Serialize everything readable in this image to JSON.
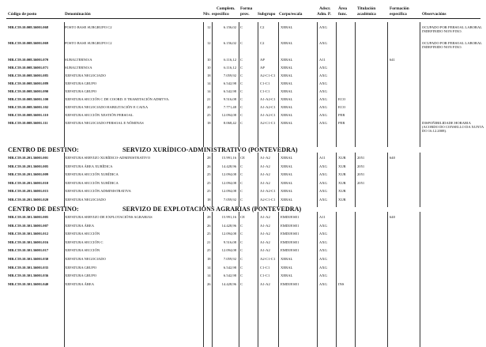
{
  "headers": {
    "codigo": "Código de posto",
    "denominacion": "Denominación",
    "nivel": "Niv.",
    "complemento_1": "Complem.",
    "complemento_2": "específico",
    "forma_1": "Forma",
    "forma_2": "prov.",
    "subgrupo": "Subgrupo",
    "corpo": "Corpo/escala",
    "adscr_1": "Adscr.",
    "adscr_2": "Adm. P.",
    "area_1": "Área",
    "area_2": "func.",
    "titulacion_1": "Titulación",
    "titulacion_2": "académica",
    "formacion_1": "Formación",
    "formacion_2": "específica",
    "observacions": "Observacións"
  },
  "sections": [
    {
      "label": "",
      "title": "",
      "rows": [
        {
          "code": "MR.C59.10.008.36001.068",
          "denom": "POSTO BASE SUBGRUPO C2",
          "niv": "12",
          "comp": "6.156,02",
          "forma": "C",
          "sub": "C2",
          "corpo": "XERAL",
          "adscr": "AXG",
          "area": "",
          "tit": "",
          "form": "",
          "obs": "OCUPADO POR PERSOAL LABORAL INDEFINIDO NON FIXO."
        },
        {
          "code": "MR.C59.10.008.36001.069",
          "denom": "POSTO BASE SUBGRUPO C2",
          "niv": "12",
          "comp": "6.156,02",
          "forma": "C",
          "sub": "C2",
          "corpo": "XERAL",
          "adscr": "AXG",
          "area": "",
          "tit": "",
          "form": "",
          "obs": "OCUPADO POR PERSOAL LABORAL INDEFINIDO NON FIXO."
        },
        {
          "code": "MR.C59.10.008.36001.070",
          "denom": "SUBALTERNO/A",
          "niv": "10",
          "comp": "6.116,12",
          "forma": "C",
          "sub": "AP",
          "corpo": "XERAL",
          "adscr": "A11",
          "area": "",
          "tit": "",
          "form": "641",
          "obs": ""
        },
        {
          "code": "MR.C59.10.008.36001.071",
          "denom": "SUBALTERNO/A",
          "niv": "10",
          "comp": "6.116,12",
          "forma": "C",
          "sub": "AP",
          "corpo": "XERAL",
          "adscr": "AXG",
          "area": "",
          "tit": "",
          "form": "",
          "obs": ""
        },
        {
          "code": "MR.C59.10.008.36001.085",
          "denom": "XEFATURA NEGOCIADO",
          "niv": "18",
          "comp": "7.059,92",
          "forma": "C",
          "sub": "A2-C1-C1",
          "corpo": "XERAL",
          "adscr": "AXG",
          "area": "",
          "tit": "",
          "form": "",
          "obs": ""
        },
        {
          "code": "MR.C59.10.008.36001.089",
          "denom": "XEFATURA GRUPO",
          "niv": "14",
          "comp": "6.542,98",
          "forma": "C",
          "sub": "C1-C1",
          "corpo": "XERAL",
          "adscr": "AXG",
          "area": "",
          "tit": "",
          "form": "",
          "obs": ""
        },
        {
          "code": "MR.C59.10.008.36001.090",
          "denom": "XEFATURA GRUPO",
          "niv": "14",
          "comp": "6.542,98",
          "forma": "C",
          "sub": "C1-C1",
          "corpo": "XERAL",
          "adscr": "AXG",
          "area": "",
          "tit": "",
          "form": "",
          "obs": ""
        },
        {
          "code": "MR.C59.10.008.36001.100",
          "denom": "XEFATURA SECCIÓN C DE COORD. E TRAMITACIÓN ADMTVA.",
          "niv": "21",
          "comp": "9.516,08",
          "forma": "C",
          "sub": "A1-A2-C1",
          "corpo": "XERAL",
          "adscr": "AXG",
          "area": "ECO",
          "tit": "",
          "form": "",
          "obs": ""
        },
        {
          "code": "MR.C59.10.008.36001.102",
          "denom": "XEFATURA NEGOCIADO HABILITACIÓN E CAIXA",
          "niv": "20",
          "comp": "7.771,48",
          "forma": "C",
          "sub": "A1-A2-C1",
          "corpo": "XERAL",
          "adscr": "AXG",
          "area": "ECO",
          "tit": "",
          "form": "",
          "obs": ""
        },
        {
          "code": "MR.C59.10.008.36001.110",
          "denom": "XEFATURA SECCIÓN XESTIÓN PERSOAL",
          "niv": "25",
          "comp": "12.094,08",
          "forma": "C",
          "sub": "A1-A2-C1",
          "corpo": "XERAL",
          "adscr": "AXG",
          "area": "PER",
          "tit": "",
          "form": "",
          "obs": ""
        },
        {
          "code": "MR.C59.10.008.36001.111",
          "denom": "XEFATURA NEGOCIADO PERSOAL E NÓMINAS",
          "niv": "18",
          "comp": "8.068,42",
          "forma": "C",
          "sub": "A2-C1-C1",
          "corpo": "XERAL",
          "adscr": "AXG",
          "area": "PER",
          "tit": "",
          "form": "",
          "obs": "DISPOÑIBILIDADE HORARIA (ACORDO DO CONSELLO DA XUNTA DO 16.12.2008)."
        }
      ]
    },
    {
      "label": "CENTRO DE DESTINO:",
      "title": "SERVIZO XURÍDICO-ADMINISTRATIVO (PONTEVEDRA)",
      "rows": [
        {
          "code": "MR.C59.10.201.36001.001",
          "denom": "XEFATURA SERVIZO XURÍDICO-ADMINISTRATIVO",
          "niv": "28",
          "comp": "15.991,16",
          "forma": "CE",
          "sub": "A1-A2",
          "corpo": "XERAL",
          "adscr": "A11",
          "area": "XUR",
          "tit": "2051",
          "form": "640",
          "obs": ""
        },
        {
          "code": "MR.C59.10.201.36001.005",
          "denom": "XEFATURA ÁREA XURÍDICA",
          "niv": "26",
          "comp": "14.428,96",
          "forma": "C",
          "sub": "A1-A2",
          "corpo": "XERAL",
          "adscr": "AXG",
          "area": "XUR",
          "tit": "2051",
          "form": "",
          "obs": ""
        },
        {
          "code": "MR.C59.10.201.36001.009",
          "denom": "XEFATURA SECCIÓN XURÍDICA",
          "niv": "25",
          "comp": "12.094,08",
          "forma": "C",
          "sub": "A1-A2",
          "corpo": "XERAL",
          "adscr": "AXG",
          "area": "XUR",
          "tit": "2051",
          "form": "",
          "obs": ""
        },
        {
          "code": "MR.C59.10.201.36001.010",
          "denom": "XEFATURA SECCIÓN XURÍDICA",
          "niv": "25",
          "comp": "12.094,08",
          "forma": "C",
          "sub": "A1-A2",
          "corpo": "XERAL",
          "adscr": "AXG",
          "area": "XUR",
          "tit": "2051",
          "form": "",
          "obs": ""
        },
        {
          "code": "MR.C59.10.201.36001.015",
          "denom": "XEFATURA SECCIÓN ADMINISTRATIVA",
          "niv": "25",
          "comp": "12.094,08",
          "forma": "C",
          "sub": "A1-A2-C1",
          "corpo": "XERAL",
          "adscr": "AXG",
          "area": "XUR",
          "tit": "",
          "form": "",
          "obs": ""
        },
        {
          "code": "MR.C59.10.201.36001.020",
          "denom": "XEFATURA NEGOCIADO",
          "niv": "18",
          "comp": "7.059,92",
          "forma": "C",
          "sub": "A2-C1-C1",
          "corpo": "XERAL",
          "adscr": "AXG",
          "area": "XUR",
          "tit": "",
          "form": "",
          "obs": ""
        }
      ]
    },
    {
      "label": "CENTRO DE DESTINO:",
      "title": "SERVIZO DE EXPLOTACIÓNS AGRARIAS (PONTEVEDRA)",
      "rows": [
        {
          "code": "MR.C59.10.301.36001.005",
          "denom": "XEFATURA SERVIZO DE EXPLOTACIÓNS AGRARIAS",
          "niv": "28",
          "comp": "15.991,16",
          "forma": "CE",
          "sub": "A1-A2",
          "corpo": "EMDI/ESE1",
          "adscr": "A11",
          "area": "",
          "tit": "",
          "form": "640",
          "obs": ""
        },
        {
          "code": "MR.C59.10.301.36001.007",
          "denom": "XEFATURA ÁREA",
          "niv": "26",
          "comp": "14.428,96",
          "forma": "C",
          "sub": "A1-A2",
          "corpo": "EMDI/ESE1",
          "adscr": "AXG",
          "area": "",
          "tit": "",
          "form": "",
          "obs": ""
        },
        {
          "code": "MR.C59.10.301.36001.012",
          "denom": "XEFATURA SECCIÓN",
          "niv": "25",
          "comp": "12.094,08",
          "forma": "C",
          "sub": "A1-A2",
          "corpo": "EMDI/ESE1",
          "adscr": "AXG",
          "area": "",
          "tit": "",
          "form": "",
          "obs": ""
        },
        {
          "code": "MR.C59.10.301.36001.016",
          "denom": "XEFATURA SECCIÓN C",
          "niv": "21",
          "comp": "9.516,08",
          "forma": "C",
          "sub": "A1-A2",
          "corpo": "EMDI/ESE1",
          "adscr": "AXG",
          "area": "",
          "tit": "",
          "form": "",
          "obs": ""
        },
        {
          "code": "MR.C59.10.301.36001.017",
          "denom": "XEFATURA SECCIÓN",
          "niv": "25",
          "comp": "12.094,08",
          "forma": "C",
          "sub": "A1-A2",
          "corpo": "EMDI/ESE1",
          "adscr": "AXG",
          "area": "",
          "tit": "",
          "form": "",
          "obs": ""
        },
        {
          "code": "MR.C59.10.301.36001.030",
          "denom": "XEFATURA NEGOCIADO",
          "niv": "18",
          "comp": "7.059,92",
          "forma": "C",
          "sub": "A2-C1-C1",
          "corpo": "XERAL",
          "adscr": "AXG",
          "area": "",
          "tit": "",
          "form": "",
          "obs": ""
        },
        {
          "code": "MR.C59.10.301.36001.035",
          "denom": "XEFATURA GRUPO",
          "niv": "14",
          "comp": "6.542,98",
          "forma": "C",
          "sub": "C1-C1",
          "corpo": "XERAL",
          "adscr": "AXG",
          "area": "",
          "tit": "",
          "form": "",
          "obs": ""
        },
        {
          "code": "MR.C59.10.301.36001.036",
          "denom": "XEFATURA GRUPO",
          "niv": "14",
          "comp": "6.542,98",
          "forma": "C",
          "sub": "C1-C1",
          "corpo": "XERAL",
          "adscr": "AXG",
          "area": "",
          "tit": "",
          "form": "",
          "obs": ""
        },
        {
          "code": "MR.C59.10.301.36001.040",
          "denom": "XEFATURA ÁREA",
          "niv": "26",
          "comp": "14.428,96",
          "forma": "C",
          "sub": "A1-A2",
          "corpo": "EMDI/ESE1",
          "adscr": "AXG",
          "area": "INS",
          "tit": "",
          "form": "",
          "obs": ""
        }
      ]
    }
  ]
}
